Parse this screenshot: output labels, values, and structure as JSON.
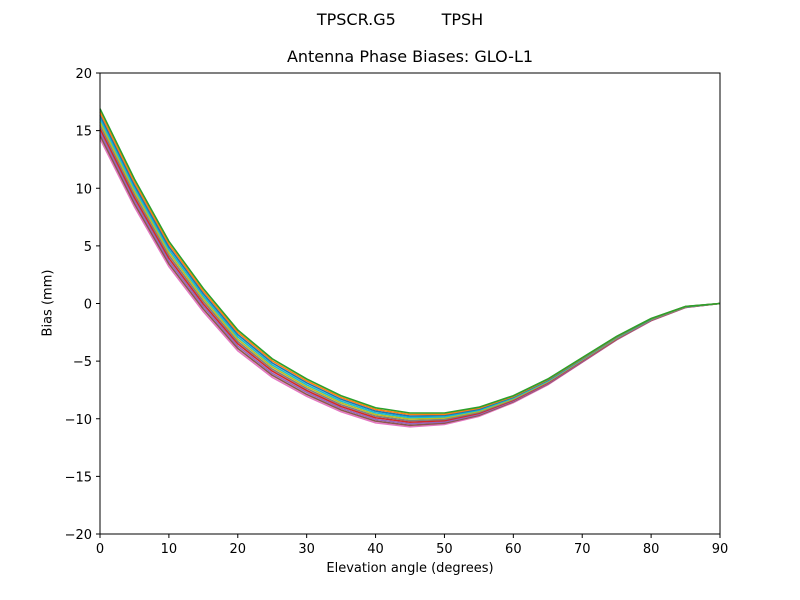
{
  "figure": {
    "suptitle": "TPSCR.G5         TPSH",
    "title": "Antenna Phase Biases: GLO-L1",
    "xlabel": "Elevation angle (degrees)",
    "ylabel": "Bias (mm)"
  },
  "chart_data": {
    "type": "line",
    "title": "Antenna Phase Biases: GLO-L1",
    "subtitle": "TPSCR.G5         TPSH",
    "xlabel": "Elevation angle (degrees)",
    "ylabel": "Bias (mm)",
    "xlim": [
      0,
      90
    ],
    "ylim": [
      -20,
      20
    ],
    "xticks": [
      0,
      10,
      20,
      30,
      40,
      50,
      60,
      70,
      80,
      90
    ],
    "yticks": [
      -20,
      -15,
      -10,
      -5,
      0,
      5,
      10,
      15,
      20
    ],
    "grid": false,
    "legend": null,
    "x": [
      0,
      5,
      10,
      15,
      20,
      25,
      30,
      35,
      40,
      45,
      50,
      55,
      60,
      65,
      70,
      75,
      80,
      85,
      90
    ],
    "band_center": [
      15.6,
      9.6,
      4.3,
      0.3,
      -3.2,
      -5.6,
      -7.3,
      -8.7,
      -9.7,
      -10.1,
      -10.0,
      -9.4,
      -8.3,
      -6.8,
      -4.9,
      -3.0,
      -1.4,
      -0.3,
      0.0
    ],
    "band_spread": [
      2.6,
      2.4,
      2.2,
      2.0,
      1.8,
      1.6,
      1.5,
      1.4,
      1.3,
      1.2,
      1.0,
      0.8,
      0.6,
      0.5,
      0.4,
      0.3,
      0.2,
      0.1,
      0.0
    ],
    "series_count": 10,
    "series_colors": [
      "#e377c2",
      "#8c564b",
      "#9467bd",
      "#d62728",
      "#7f7f7f",
      "#bcbd22",
      "#17becf",
      "#1f77b4",
      "#ff7f0e",
      "#2ca02c"
    ],
    "notes": "Many overlapping per-satellite curves forming a narrow band; values estimated from pixels."
  }
}
